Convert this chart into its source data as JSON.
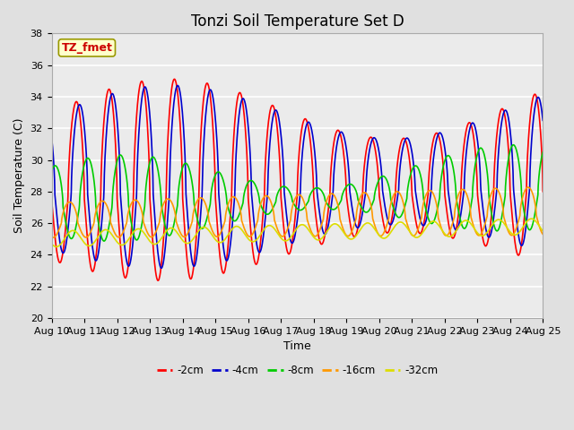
{
  "title": "Tonzi Soil Temperature Set D",
  "xlabel": "Time",
  "ylabel": "Soil Temperature (C)",
  "ylim": [
    20,
    38
  ],
  "days": 15,
  "xtick_labels": [
    "Aug 10",
    "Aug 11",
    "Aug 12",
    "Aug 13",
    "Aug 14",
    "Aug 15",
    "Aug 16",
    "Aug 17",
    "Aug 18",
    "Aug 19",
    "Aug 20",
    "Aug 21",
    "Aug 22",
    "Aug 23",
    "Aug 24",
    "Aug 25"
  ],
  "legend_label": "TZ_fmet",
  "legend_box_facecolor": "#ffffcc",
  "legend_box_edgecolor": "#999900",
  "legend_text_color": "#cc0000",
  "series_colors": [
    "#ff0000",
    "#0000cc",
    "#00cc00",
    "#ff9900",
    "#dddd00"
  ],
  "series_labels": [
    "-2cm",
    "-4cm",
    "-8cm",
    "-16cm",
    "-32cm"
  ],
  "bg_color": "#e0e0e0",
  "plot_bg_color": "#ebebeb",
  "grid_color": "#ffffff",
  "title_fontsize": 12,
  "axis_label_fontsize": 9,
  "tick_fontsize": 8,
  "n_points": 1500
}
